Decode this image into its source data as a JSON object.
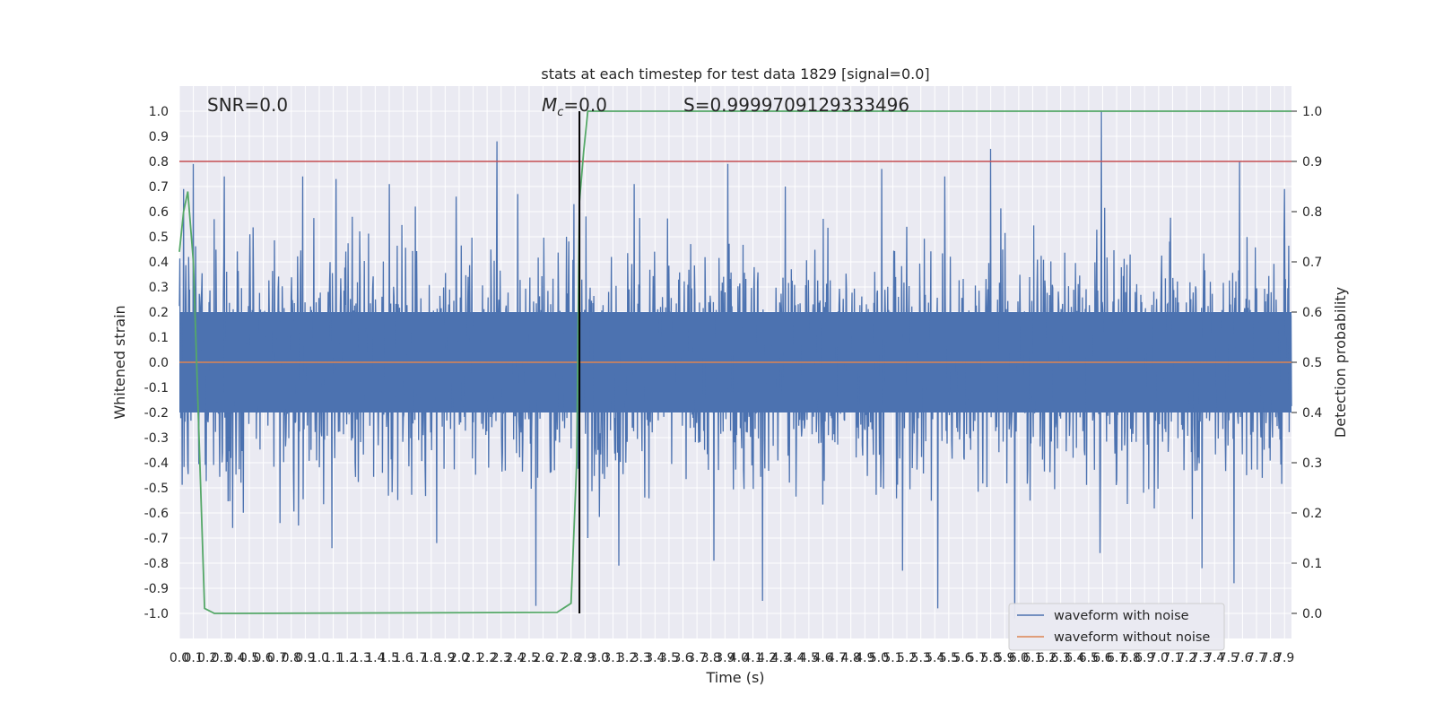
{
  "chart_data": {
    "type": "line",
    "title": "stats at each timestep for test data 1829 [signal=0.0]",
    "xlabel": "Time (s)",
    "ylabel_left": "Whitened strain",
    "ylabel_right": "Detection probability",
    "xlim": [
      0.0,
      7.95
    ],
    "ylim_left": [
      -1.1,
      1.1
    ],
    "ylim_right": [
      -0.05,
      1.05
    ],
    "x_ticks": [
      "0.0",
      "0.1",
      "0.2",
      "0.3",
      "0.4",
      "0.5",
      "0.6",
      "0.7",
      "0.8",
      "0.9",
      "1.0",
      "1.1",
      "1.2",
      "1.3",
      "1.4",
      "1.5",
      "1.6",
      "1.7",
      "1.8",
      "1.9",
      "2.0",
      "2.1",
      "2.2",
      "2.3",
      "2.4",
      "2.5",
      "2.6",
      "2.7",
      "2.8",
      "2.9",
      "3.0",
      "3.1",
      "3.2",
      "3.3",
      "3.4",
      "3.5",
      "3.6",
      "3.7",
      "3.8",
      "3.9",
      "4.0",
      "4.1",
      "4.2",
      "4.3",
      "4.4",
      "4.5",
      "4.6",
      "4.7",
      "4.8",
      "4.9",
      "5.0",
      "5.1",
      "5.2",
      "5.3",
      "5.4",
      "5.5",
      "5.6",
      "5.7",
      "5.8",
      "5.9",
      "6.0",
      "6.1",
      "6.2",
      "6.3",
      "6.4",
      "6.5",
      "6.6",
      "6.7",
      "6.8",
      "6.9",
      "7.0",
      "7.1",
      "7.2",
      "7.3",
      "7.4",
      "7.5",
      "7.6",
      "7.7",
      "7.8",
      "7.9"
    ],
    "y_ticks_left": [
      "1.0",
      "0.9",
      "0.8",
      "0.7",
      "0.6",
      "0.5",
      "0.4",
      "0.3",
      "0.2",
      "0.1",
      "0.0",
      "-0.1",
      "-0.2",
      "-0.3",
      "-0.4",
      "-0.5",
      "-0.6",
      "-0.7",
      "-0.8",
      "-0.9",
      "-1.0"
    ],
    "y_ticks_right": [
      "1.0",
      "0.9",
      "0.8",
      "0.7",
      "0.6",
      "0.5",
      "0.4",
      "0.3",
      "0.2",
      "0.1",
      "0.0"
    ],
    "grid": true,
    "legend_position": "lower-right",
    "annotations": {
      "snr": "SNR=0.0",
      "mc_symbol": "M",
      "mc_subscript": "c",
      "mc_value": "=0.0",
      "s_value": "S=0.9999709129333496"
    },
    "threshold": {
      "value": 0.9,
      "axis": "right",
      "color": "#c44e52"
    },
    "marker_time": {
      "x": 2.86,
      "color": "#000000"
    },
    "series": [
      {
        "name": "waveform with noise",
        "color": "#4c72b0",
        "axis": "left",
        "style": "dense noise, mostly within ±0.4",
        "peaks": [
          {
            "x": 0.03,
            "y": 0.69
          },
          {
            "x": 0.1,
            "y": 0.79
          },
          {
            "x": 0.25,
            "y": 0.57
          },
          {
            "x": 0.32,
            "y": 0.74
          },
          {
            "x": 0.88,
            "y": 0.74
          },
          {
            "x": 1.12,
            "y": 0.73
          },
          {
            "x": 1.5,
            "y": 0.71
          },
          {
            "x": 1.98,
            "y": 0.66
          },
          {
            "x": 2.27,
            "y": 0.88
          },
          {
            "x": 2.42,
            "y": 0.67
          },
          {
            "x": 2.82,
            "y": 0.63
          },
          {
            "x": 3.25,
            "y": 0.71
          },
          {
            "x": 3.92,
            "y": 0.79
          },
          {
            "x": 4.33,
            "y": 0.7
          },
          {
            "x": 5.02,
            "y": 0.77
          },
          {
            "x": 5.47,
            "y": 0.74
          },
          {
            "x": 5.8,
            "y": 0.85
          },
          {
            "x": 6.59,
            "y": 1.0
          },
          {
            "x": 7.58,
            "y": 0.8
          },
          {
            "x": 7.9,
            "y": 0.69
          }
        ],
        "troughs": [
          {
            "x": 0.06,
            "y": -0.41
          },
          {
            "x": 0.38,
            "y": -0.66
          },
          {
            "x": 0.72,
            "y": -0.64
          },
          {
            "x": 1.09,
            "y": -0.74
          },
          {
            "x": 1.84,
            "y": -0.72
          },
          {
            "x": 2.55,
            "y": -0.97
          },
          {
            "x": 2.92,
            "y": -0.7
          },
          {
            "x": 3.14,
            "y": -0.81
          },
          {
            "x": 3.82,
            "y": -0.79
          },
          {
            "x": 4.17,
            "y": -0.95
          },
          {
            "x": 5.17,
            "y": -0.83
          },
          {
            "x": 5.42,
            "y": -0.98
          },
          {
            "x": 5.97,
            "y": -1.02
          },
          {
            "x": 6.58,
            "y": -0.76
          },
          {
            "x": 7.31,
            "y": -0.82
          },
          {
            "x": 7.54,
            "y": -0.88
          }
        ]
      },
      {
        "name": "waveform without noise",
        "color": "#dd8452",
        "axis": "left",
        "x": [
          0.0,
          7.95
        ],
        "y": [
          0.0,
          0.0
        ]
      },
      {
        "name": "detection probability",
        "color": "#55a868",
        "axis": "right",
        "x": [
          0.0,
          0.03,
          0.06,
          0.1,
          0.18,
          0.25,
          0.3,
          0.4,
          2.7,
          2.8,
          2.84,
          2.86,
          2.89,
          2.92,
          2.96,
          7.95
        ],
        "y": [
          0.72,
          0.8,
          0.84,
          0.7,
          0.01,
          0.0,
          0.0,
          0.0,
          0.002,
          0.02,
          0.3,
          0.82,
          0.92,
          1.0,
          1.0,
          1.0
        ]
      }
    ]
  }
}
